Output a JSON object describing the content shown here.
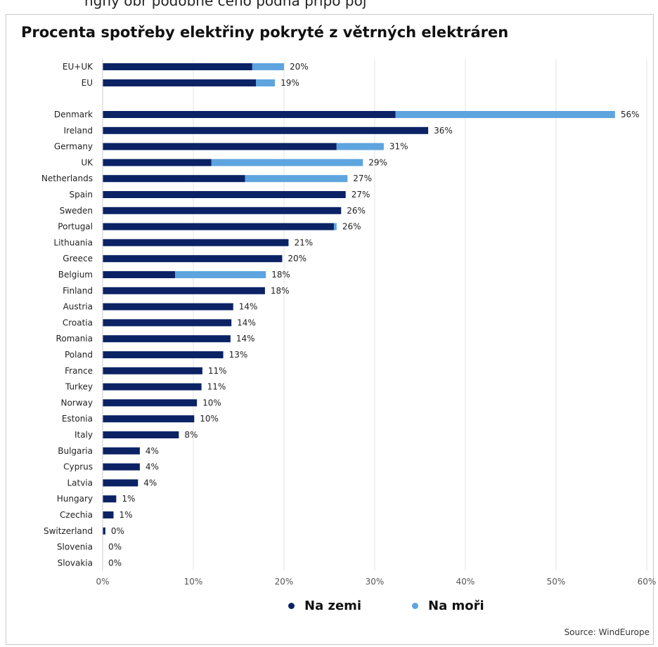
{
  "cropped_header": "ngny obr podobne ceho podna pripo poj",
  "chart_data": {
    "type": "bar",
    "orientation": "horizontal",
    "stacked": true,
    "title": "Procenta spotřeby elektřiny pokryté z větrných elektráren",
    "xlim": [
      0,
      60
    ],
    "xticks": [
      "0%",
      "10%",
      "20%",
      "30%",
      "40%",
      "50%",
      "60%"
    ],
    "grid": true,
    "legend_position": "bottom",
    "categories": [
      "EU+UK",
      "EU",
      "Denmark",
      "Ireland",
      "Germany",
      "UK",
      "Netherlands",
      "Spain",
      "Sweden",
      "Portugal",
      "Lithuania",
      "Greece",
      "Belgium",
      "Finland",
      "Austria",
      "Croatia",
      "Romania",
      "Poland",
      "France",
      "Turkey",
      "Norway",
      "Estonia",
      "Italy",
      "Bulgaria",
      "Cyprus",
      "Latvia",
      "Hungary",
      "Czechia",
      "Switzerland",
      "Slovenia",
      "Slovakia"
    ],
    "series": [
      {
        "name": "Na zemi",
        "color": "#0b2265",
        "values": [
          16.5,
          16.9,
          32.3,
          35.9,
          25.8,
          12.0,
          15.7,
          26.8,
          26.3,
          25.5,
          20.5,
          19.8,
          8.0,
          17.9,
          14.4,
          14.2,
          14.1,
          13.3,
          11.0,
          10.9,
          10.4,
          10.1,
          8.4,
          4.1,
          4.1,
          3.9,
          1.5,
          1.2,
          0.3,
          0,
          0
        ]
      },
      {
        "name": "Na moři",
        "color": "#5ea4df",
        "values": [
          3.5,
          2.1,
          24.2,
          0,
          5.2,
          16.7,
          11.3,
          0,
          0,
          0.3,
          0,
          0,
          10.0,
          0,
          0,
          0,
          0,
          0,
          0,
          0,
          0,
          0,
          0,
          0,
          0,
          0,
          0,
          0,
          0,
          0,
          0
        ]
      }
    ],
    "data_labels": [
      "20%",
      "19%",
      "56%",
      "36%",
      "31%",
      "29%",
      "27%",
      "27%",
      "26%",
      "26%",
      "21%",
      "20%",
      "18%",
      "18%",
      "14%",
      "14%",
      "14%",
      "13%",
      "11%",
      "11%",
      "10%",
      "10%",
      "8%",
      "4%",
      "4%",
      "4%",
      "1%",
      "1%",
      "0%",
      "0%",
      "0%"
    ],
    "source": "Source: WindEurope"
  }
}
